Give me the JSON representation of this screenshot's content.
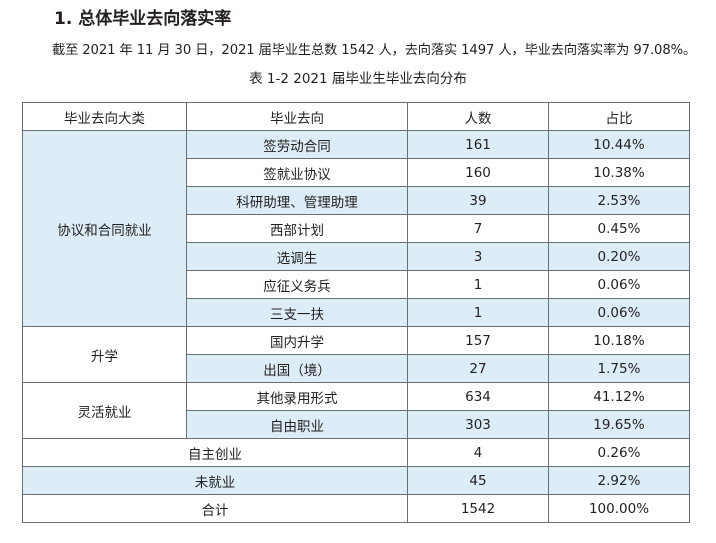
{
  "heading": "1. 总体毕业去向落实率",
  "summary": "截至 2021 年 11 月 30 日，2021 届毕业生总数 1542 人，去向落实 1497 人，毕业去向落实率为 97.08%。",
  "caption": "表 1-2  2021 届毕业生毕业去向分布",
  "colors": {
    "row_highlight": "#dcedf7",
    "border": "#6d6e71"
  },
  "table": {
    "headers": [
      "毕业去向大类",
      "毕业去向",
      "人数",
      "占比"
    ],
    "groups": [
      {
        "category": "协议和合同就业",
        "rows": [
          {
            "destination": "签劳动合同",
            "count": "161",
            "ratio": "10.44%"
          },
          {
            "destination": "签就业协议",
            "count": "160",
            "ratio": "10.38%"
          },
          {
            "destination": "科研助理、管理助理",
            "count": "39",
            "ratio": "2.53%"
          },
          {
            "destination": "西部计划",
            "count": "7",
            "ratio": "0.45%"
          },
          {
            "destination": "选调生",
            "count": "3",
            "ratio": "0.20%"
          },
          {
            "destination": "应征义务兵",
            "count": "1",
            "ratio": "0.06%"
          },
          {
            "destination": "三支一扶",
            "count": "1",
            "ratio": "0.06%"
          }
        ]
      },
      {
        "category": "升学",
        "rows": [
          {
            "destination": "国内升学",
            "count": "157",
            "ratio": "10.18%"
          },
          {
            "destination": "出国（境）",
            "count": "27",
            "ratio": "1.75%"
          }
        ]
      },
      {
        "category": "灵活就业",
        "rows": [
          {
            "destination": "其他录用形式",
            "count": "634",
            "ratio": "41.12%"
          },
          {
            "destination": "自由职业",
            "count": "303",
            "ratio": "19.65%"
          }
        ]
      }
    ],
    "standalone": [
      {
        "label": "自主创业",
        "count": "4",
        "ratio": "0.26%"
      },
      {
        "label": "未就业",
        "count": "45",
        "ratio": "2.92%"
      }
    ],
    "total": {
      "label": "合计",
      "count": "1542",
      "ratio": "100.00%"
    }
  }
}
